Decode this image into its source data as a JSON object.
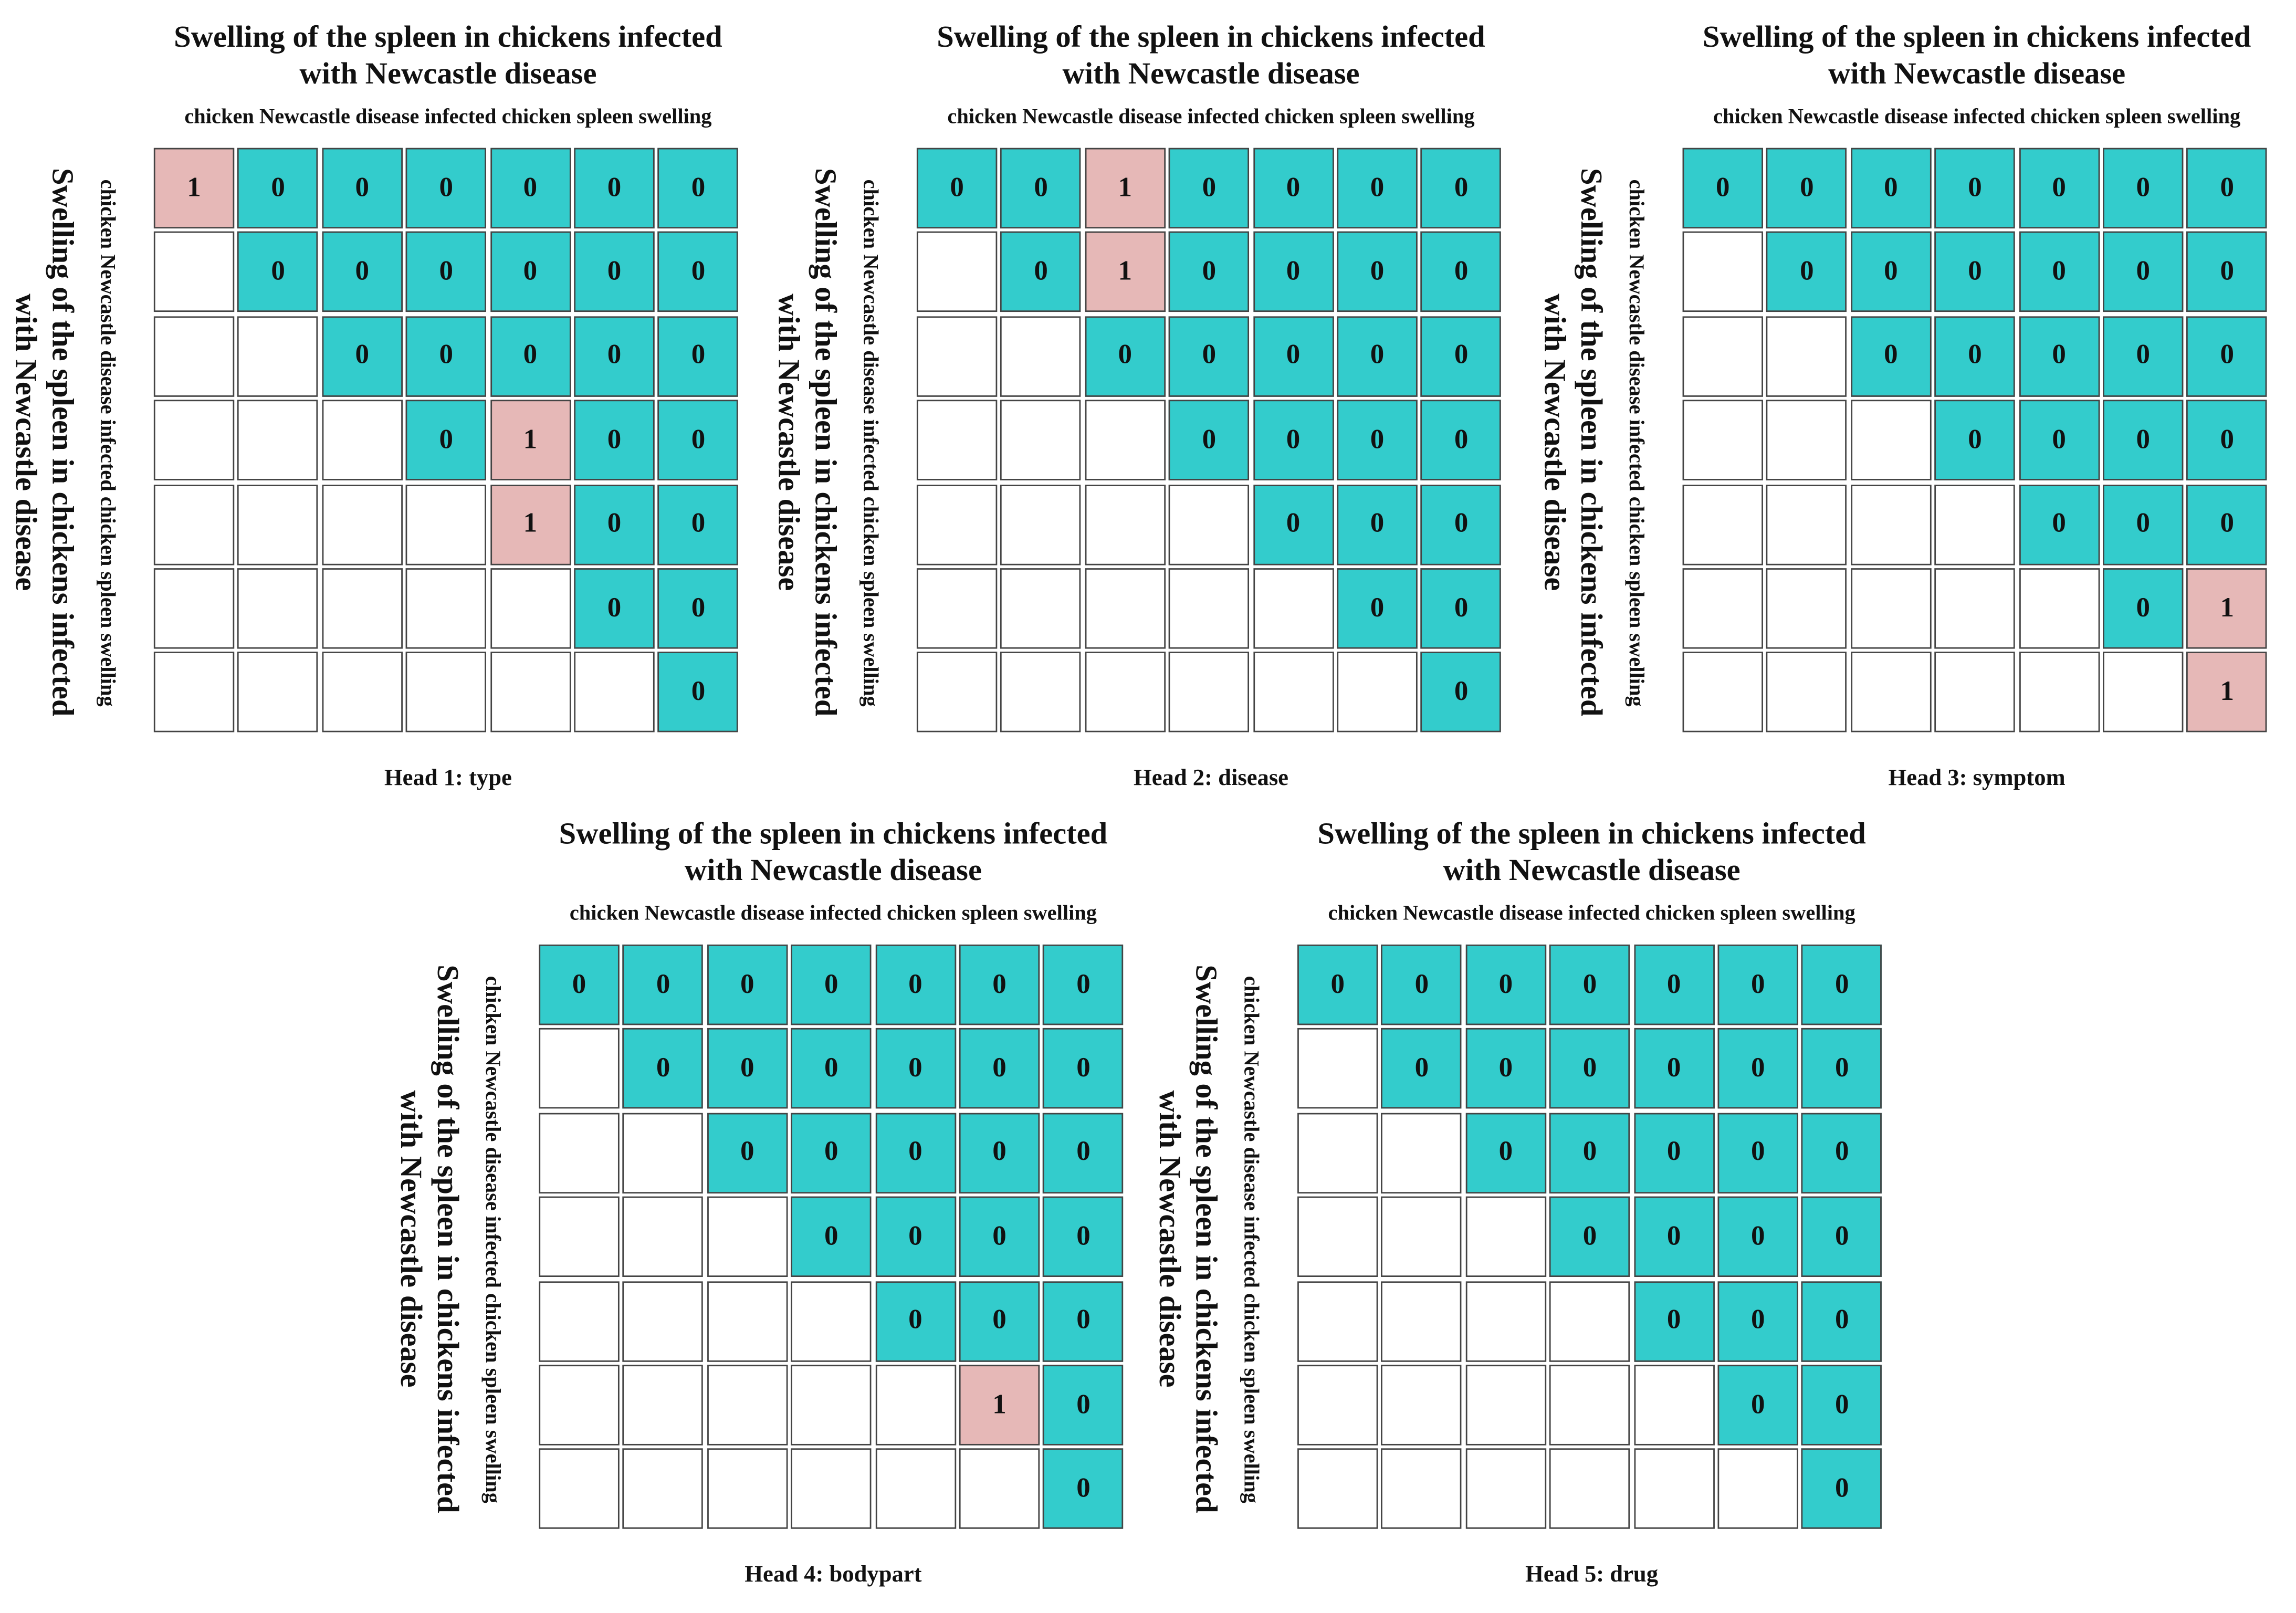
{
  "colors": {
    "zero": "#33cccc",
    "one": "#e6b8b7",
    "empty": "#ffffff"
  },
  "chart_data": [
    {
      "type": "heatmap",
      "title": "Swelling of the spleen in chickens infected with Newcastle disease",
      "title_lines": [
        "Swelling of the spleen in chickens infected",
        "with Newcastle disease"
      ],
      "xlabel": "chicken Newcastle disease infected chicken spleen swelling",
      "ylabel": "chicken Newcastle disease infected chicken spleen swelling",
      "caption": "Head 1: type",
      "matrix": [
        [
          1,
          0,
          0,
          0,
          0,
          0,
          0
        ],
        [
          null,
          0,
          0,
          0,
          0,
          0,
          0
        ],
        [
          null,
          null,
          0,
          0,
          0,
          0,
          0
        ],
        [
          null,
          null,
          null,
          0,
          1,
          0,
          0
        ],
        [
          null,
          null,
          null,
          null,
          1,
          0,
          0
        ],
        [
          null,
          null,
          null,
          null,
          null,
          0,
          0
        ],
        [
          null,
          null,
          null,
          null,
          null,
          null,
          0
        ]
      ]
    },
    {
      "type": "heatmap",
      "title": "Swelling of the spleen in chickens infected with Newcastle disease",
      "title_lines": [
        "Swelling of the spleen in chickens infected",
        "with Newcastle disease"
      ],
      "xlabel": "chicken Newcastle disease infected chicken spleen swelling",
      "ylabel": "chicken Newcastle disease infected chicken spleen swelling",
      "caption": "Head 2: disease",
      "matrix": [
        [
          0,
          0,
          1,
          0,
          0,
          0,
          0
        ],
        [
          null,
          0,
          1,
          0,
          0,
          0,
          0
        ],
        [
          null,
          null,
          0,
          0,
          0,
          0,
          0
        ],
        [
          null,
          null,
          null,
          0,
          0,
          0,
          0
        ],
        [
          null,
          null,
          null,
          null,
          0,
          0,
          0
        ],
        [
          null,
          null,
          null,
          null,
          null,
          0,
          0
        ],
        [
          null,
          null,
          null,
          null,
          null,
          null,
          0
        ]
      ]
    },
    {
      "type": "heatmap",
      "title": "Swelling of the spleen in chickens infected with Newcastle disease",
      "title_lines": [
        "Swelling of the spleen in chickens infected",
        "with Newcastle disease"
      ],
      "xlabel": "chicken Newcastle disease infected chicken spleen swelling",
      "ylabel": "chicken Newcastle disease infected chicken spleen swelling",
      "caption": "Head 3: symptom",
      "matrix": [
        [
          0,
          0,
          0,
          0,
          0,
          0,
          0
        ],
        [
          null,
          0,
          0,
          0,
          0,
          0,
          0
        ],
        [
          null,
          null,
          0,
          0,
          0,
          0,
          0
        ],
        [
          null,
          null,
          null,
          0,
          0,
          0,
          0
        ],
        [
          null,
          null,
          null,
          null,
          0,
          0,
          0
        ],
        [
          null,
          null,
          null,
          null,
          null,
          0,
          1
        ],
        [
          null,
          null,
          null,
          null,
          null,
          null,
          1
        ]
      ]
    },
    {
      "type": "heatmap",
      "title": "Swelling of the spleen in chickens infected with Newcastle disease",
      "title_lines": [
        "Swelling of the spleen in chickens infected",
        "with Newcastle disease"
      ],
      "xlabel": "chicken Newcastle disease infected chicken spleen swelling",
      "ylabel": "chicken Newcastle disease infected chicken spleen swelling",
      "caption": "Head 4: bodypart",
      "matrix": [
        [
          0,
          0,
          0,
          0,
          0,
          0,
          0
        ],
        [
          null,
          0,
          0,
          0,
          0,
          0,
          0
        ],
        [
          null,
          null,
          0,
          0,
          0,
          0,
          0
        ],
        [
          null,
          null,
          null,
          0,
          0,
          0,
          0
        ],
        [
          null,
          null,
          null,
          null,
          0,
          0,
          0
        ],
        [
          null,
          null,
          null,
          null,
          null,
          1,
          0
        ],
        [
          null,
          null,
          null,
          null,
          null,
          null,
          0
        ]
      ]
    },
    {
      "type": "heatmap",
      "title": "Swelling of the spleen in chickens infected with Newcastle disease",
      "title_lines": [
        "Swelling of the spleen in chickens infected",
        "with Newcastle disease"
      ],
      "xlabel": "chicken Newcastle disease infected chicken spleen swelling",
      "ylabel": "chicken Newcastle disease infected chicken spleen swelling",
      "caption": "Head 5: drug",
      "matrix": [
        [
          0,
          0,
          0,
          0,
          0,
          0,
          0
        ],
        [
          null,
          0,
          0,
          0,
          0,
          0,
          0
        ],
        [
          null,
          null,
          0,
          0,
          0,
          0,
          0
        ],
        [
          null,
          null,
          null,
          0,
          0,
          0,
          0
        ],
        [
          null,
          null,
          null,
          null,
          0,
          0,
          0
        ],
        [
          null,
          null,
          null,
          null,
          null,
          0,
          0
        ],
        [
          null,
          null,
          null,
          null,
          null,
          null,
          0
        ]
      ]
    }
  ]
}
